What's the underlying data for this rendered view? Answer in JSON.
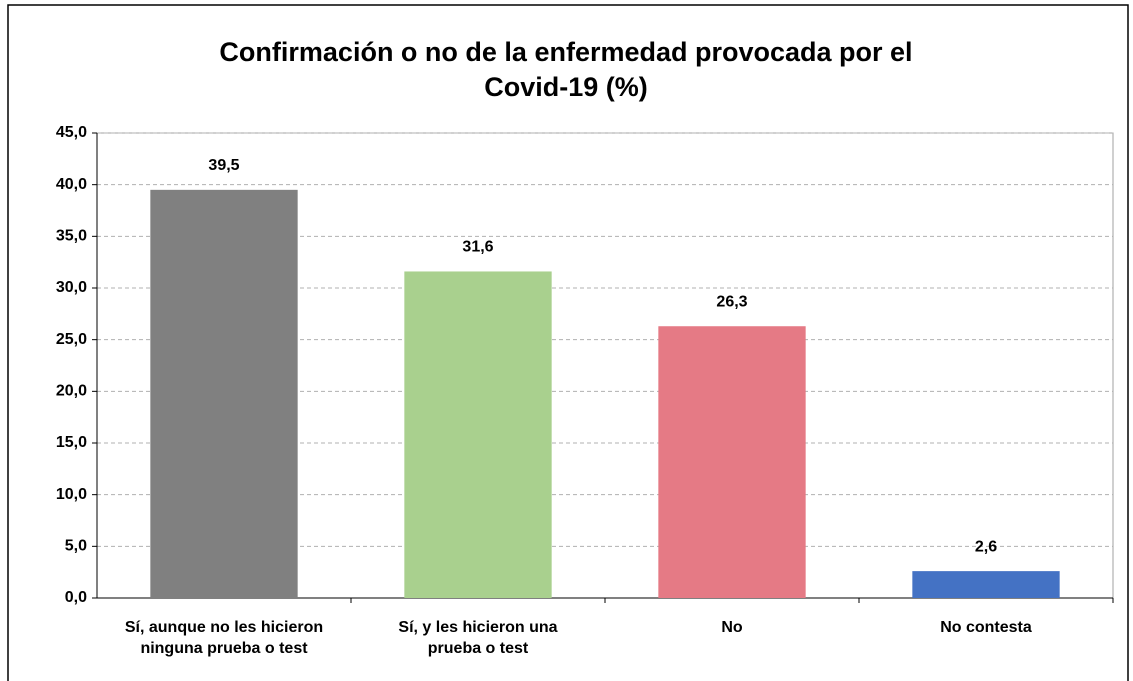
{
  "chart_data": {
    "type": "bar",
    "title": [
      "Confirmación o no de la enfermedad provocada por el",
      "Covid-19 (%)"
    ],
    "categories": [
      "Sí, aunque no les hicieron ninguna prueba o test",
      "Sí, y les hicieron una prueba o test",
      "No",
      "No contesta"
    ],
    "values": [
      39.5,
      31.6,
      26.3,
      2.6
    ],
    "value_labels": [
      "39,5",
      "31,6",
      "26,3",
      "2,6"
    ],
    "colors": [
      "#808080",
      "#a9d08e",
      "#e57a85",
      "#4472c4"
    ],
    "ylim": [
      0,
      45
    ],
    "yticks": [
      {
        "value": 0,
        "label": "0,0"
      },
      {
        "value": 5,
        "label": "5,0"
      },
      {
        "value": 10,
        "label": "10,0"
      },
      {
        "value": 15,
        "label": "15,0"
      },
      {
        "value": 20,
        "label": "20,0"
      },
      {
        "value": 25,
        "label": "25,0"
      },
      {
        "value": 30,
        "label": "30,0"
      },
      {
        "value": 35,
        "label": "35,0"
      },
      {
        "value": 40,
        "label": "40,0"
      },
      {
        "value": 45,
        "label": "45,0"
      }
    ],
    "grid": true
  }
}
